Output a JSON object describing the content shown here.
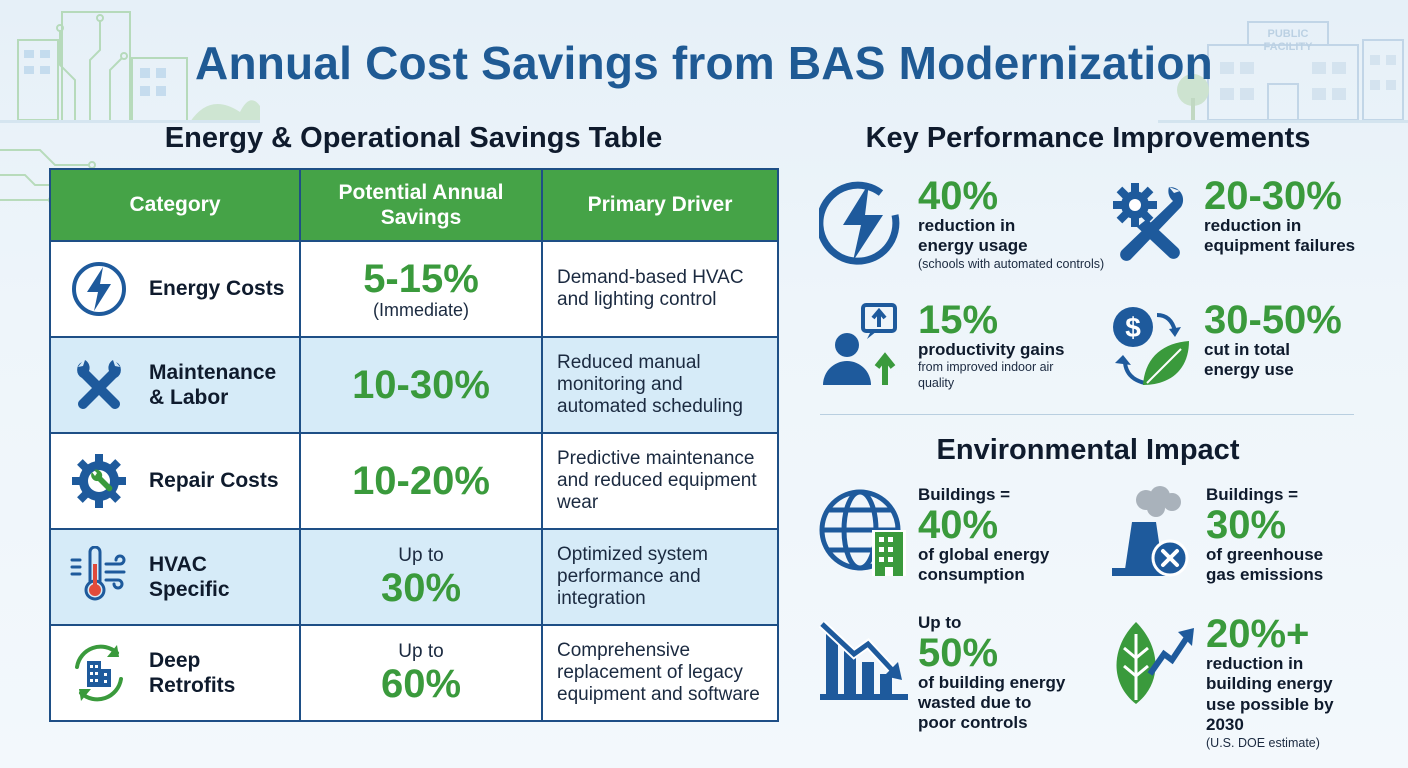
{
  "title": "Annual Cost Savings from BAS Modernization",
  "decor": {
    "public_facility_sign": [
      "PUBLIC",
      "FACILITY"
    ]
  },
  "table": {
    "title": "Energy & Operational Savings Table",
    "headers": [
      "Category",
      "Potential Annual Savings",
      "Primary Driver"
    ],
    "rows": [
      {
        "icon": "lightning-bolt-icon",
        "category": "Energy Costs",
        "savings_prefix": "",
        "savings": "5-15%",
        "savings_note": "(Immediate)",
        "driver": "Demand-based HVAC and lighting control"
      },
      {
        "icon": "wrench-screwdriver-icon",
        "category": "Maintenance & Labor",
        "savings_prefix": "",
        "savings": "10-30%",
        "savings_note": "",
        "driver": "Reduced manual monitoring and automated scheduling"
      },
      {
        "icon": "gear-wrench-icon",
        "category": "Repair Costs",
        "savings_prefix": "",
        "savings": "10-20%",
        "savings_note": "",
        "driver": "Predictive maintenance and reduced equipment wear"
      },
      {
        "icon": "thermometer-airflow-icon",
        "category": "HVAC Specific",
        "savings_prefix": "Up to",
        "savings": "30%",
        "savings_note": "",
        "driver": "Optimized system performance and integration"
      },
      {
        "icon": "building-recycle-icon",
        "category": "Deep Retrofits",
        "savings_prefix": "Up to",
        "savings": "60%",
        "savings_note": "",
        "driver": "Comprehensive replacement of legacy equipment and software"
      }
    ]
  },
  "kpi": {
    "title": "Key Performance Improvements",
    "items": [
      {
        "icon": "lightning-bolt-icon",
        "value": "40%",
        "desc": "reduction in energy usage",
        "note": "(schools with automated controls)"
      },
      {
        "icon": "wrench-gear-icon",
        "value": "20-30%",
        "desc": "reduction in equipment failures",
        "note": ""
      },
      {
        "icon": "person-growth-icon",
        "value": "15%",
        "desc": "productivity gains",
        "note": "from improved indoor air quality"
      },
      {
        "icon": "dollar-leaf-icon",
        "value": "30-50%",
        "desc": "cut in total energy use",
        "note": ""
      }
    ]
  },
  "environment": {
    "title": "Environmental Impact",
    "items": [
      {
        "icon": "globe-building-icon",
        "prefix": "Buildings =",
        "value": "40%",
        "desc": "of global energy consumption",
        "note": ""
      },
      {
        "icon": "factory-emissions-icon",
        "prefix": "Buildings =",
        "value": "30%",
        "desc": "of greenhouse gas emissions",
        "note": ""
      },
      {
        "icon": "declining-chart-icon",
        "prefix": "Up to",
        "value": "50%",
        "desc": "of building energy wasted due to poor controls",
        "note": ""
      },
      {
        "icon": "leaf-arrow-icon",
        "prefix": "",
        "value": "20%+",
        "desc": "reduction in building energy use possible by 2030",
        "note": "(U.S. DOE estimate)"
      }
    ]
  },
  "colors": {
    "title_blue": "#1f5a94",
    "header_green": "#45a347",
    "value_green": "#3a9a3c",
    "icon_blue": "#1e5a9c",
    "row_alt": "#d6ebf8"
  }
}
